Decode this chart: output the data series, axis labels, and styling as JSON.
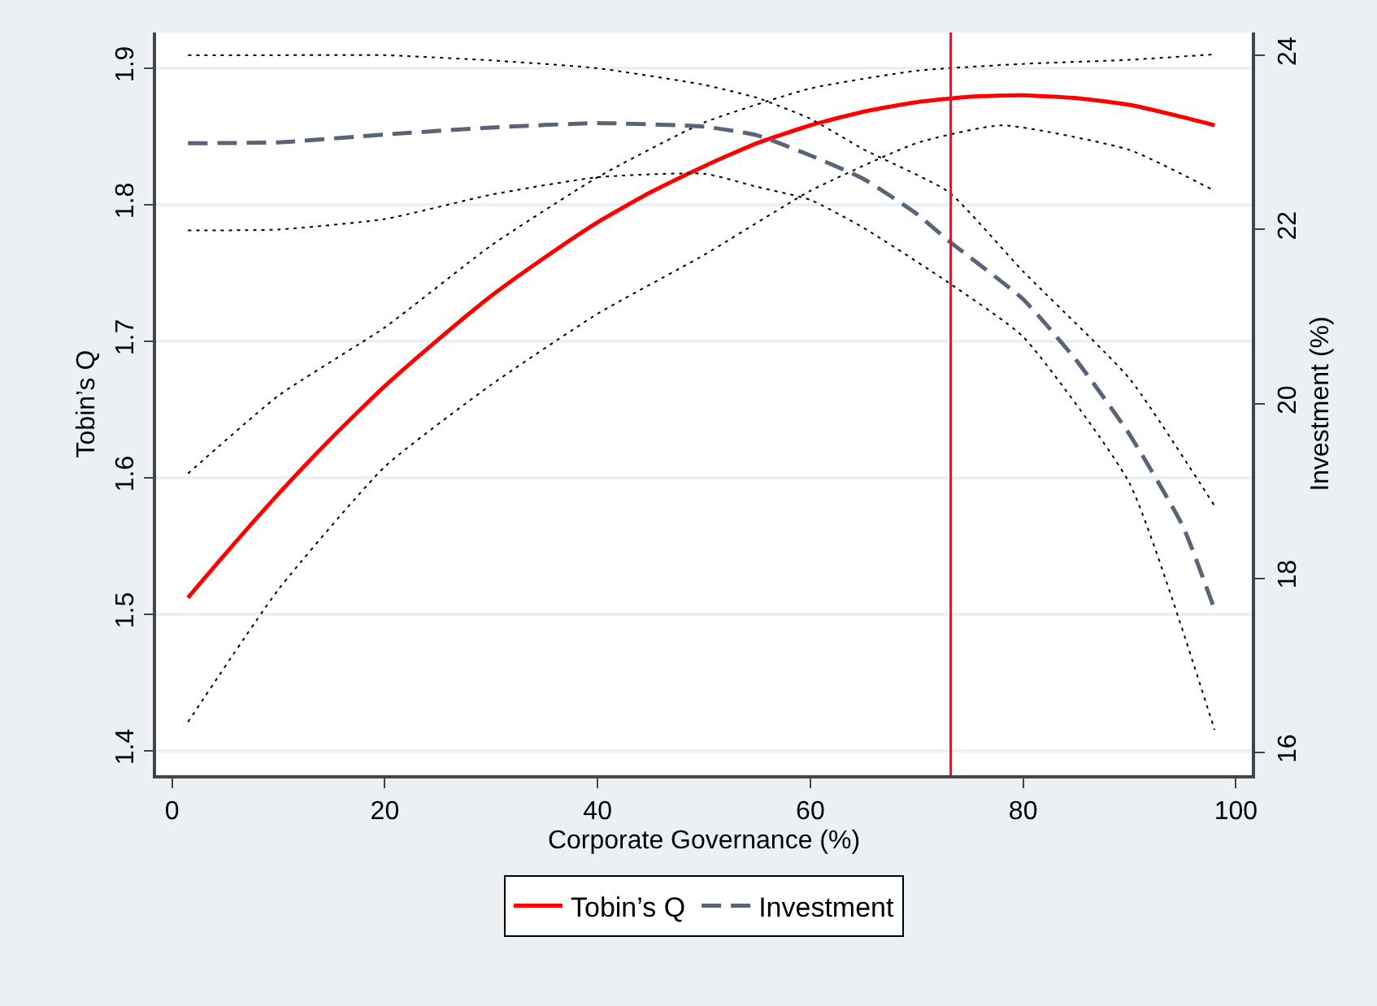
{
  "chart_data": {
    "type": "line",
    "xlabel": "Corporate Governance (%)",
    "ylabel": "Tobin’s Q",
    "y2label": "Investment (%)",
    "xlim": [
      -1.5,
      101.5
    ],
    "xticks": [
      0,
      20,
      40,
      60,
      80,
      100
    ],
    "ylim": [
      1.382,
      1.926
    ],
    "yticks": [
      1.4,
      1.5,
      1.6,
      1.7,
      1.8,
      1.9
    ],
    "y2lim": [
      15.74,
      24.26
    ],
    "y2ticks": [
      16,
      18,
      20,
      22,
      24
    ],
    "grid": "y",
    "legend": "bottom",
    "ref_lines": [
      {
        "axis": "x",
        "value": 73.2,
        "color": "#c0203c"
      }
    ],
    "series": [
      {
        "color": "#000000",
        "line_style": "dotted",
        "x": [
          1.5,
          10,
          20,
          30,
          40,
          50,
          60,
          70,
          80,
          90,
          98
        ],
        "values": [
          1.603,
          1.66,
          1.71,
          1.77,
          1.82,
          1.86,
          1.885,
          1.898,
          1.903,
          1.906,
          1.91
        ]
      },
      {
        "color": "#000000",
        "line_style": "dotted",
        "x": [
          1.5,
          10,
          20,
          30,
          40,
          50,
          60,
          70,
          78,
          90,
          98
        ],
        "values": [
          1.421,
          1.518,
          1.608,
          1.668,
          1.72,
          1.763,
          1.81,
          1.845,
          1.858,
          1.84,
          1.81
        ]
      },
      {
        "color": "#000000",
        "line_style": "dotted",
        "axis": "y2",
        "x": [
          1.5,
          10,
          20,
          30,
          40,
          50,
          55,
          60,
          65,
          73,
          80,
          90,
          98
        ],
        "values": [
          24.0,
          24.0,
          24.0,
          23.94,
          23.85,
          23.66,
          23.51,
          23.27,
          22.92,
          22.43,
          21.52,
          20.29,
          18.83
        ]
      },
      {
        "color": "#000000",
        "line_style": "dotted",
        "axis": "y2",
        "x": [
          1.5,
          10,
          20,
          30,
          40,
          50,
          55,
          60,
          65,
          73,
          80,
          90,
          98
        ],
        "values": [
          21.99,
          22.0,
          22.12,
          22.4,
          22.6,
          22.64,
          22.49,
          22.34,
          22.02,
          21.39,
          20.77,
          19.09,
          16.26
        ]
      },
      {
        "name": "Tobin’s Q",
        "color": "#ff0000",
        "line_style": "solid",
        "x": [
          1.5,
          5,
          10,
          15,
          20,
          25,
          30,
          35,
          40,
          45,
          50,
          55,
          60,
          65,
          70,
          75,
          80,
          85,
          90,
          95,
          98
        ],
        "values": [
          1.512,
          1.544,
          1.588,
          1.629,
          1.667,
          1.701,
          1.733,
          1.761,
          1.787,
          1.809,
          1.828,
          1.845,
          1.858,
          1.868,
          1.875,
          1.879,
          1.88,
          1.878,
          1.873,
          1.864,
          1.858
        ]
      },
      {
        "name": "Investment",
        "color": "#5a6478",
        "line_style": "dashed",
        "axis": "y2",
        "x": [
          1.5,
          10,
          20,
          30,
          40,
          50,
          55,
          60,
          65,
          70,
          73,
          80,
          85,
          90,
          95,
          98
        ],
        "values": [
          22.99,
          23.0,
          23.09,
          23.17,
          23.22,
          23.18,
          23.08,
          22.85,
          22.58,
          22.18,
          21.87,
          21.2,
          20.5,
          19.65,
          18.6,
          17.64
        ]
      }
    ]
  }
}
